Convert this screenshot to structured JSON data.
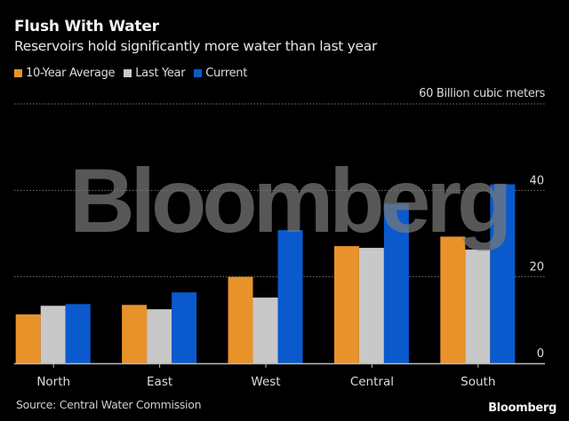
{
  "header": {
    "title": "Flush With Water",
    "subtitle": "Reservoirs hold significantly more water than last year"
  },
  "legend": [
    {
      "label": "10-Year Average",
      "color": "#E8922A"
    },
    {
      "label": "Last Year",
      "color": "#C8C8C8"
    },
    {
      "label": "Current",
      "color": "#0A5ACD"
    }
  ],
  "unit_label": "60 Billion cubic meters",
  "footer": {
    "source": "Source: Central Water Commission",
    "brand": "Bloomberg"
  },
  "watermark": "Bloomberg",
  "chart_data": {
    "type": "bar",
    "title": "Flush With Water",
    "subtitle": "Reservoirs hold significantly more water than last year",
    "xlabel": "",
    "ylabel": "Billion cubic meters",
    "categories": [
      "North",
      "East",
      "West",
      "Central",
      "South"
    ],
    "series": [
      {
        "name": "10-Year Average",
        "color": "#E8922A",
        "values": [
          11.3,
          13.5,
          20.0,
          27.1,
          29.3
        ]
      },
      {
        "name": "Last Year",
        "color": "#C8C8C8",
        "values": [
          13.3,
          12.5,
          15.2,
          26.7,
          26.3
        ]
      },
      {
        "name": "Current",
        "color": "#0A5ACD",
        "values": [
          13.7,
          16.4,
          30.8,
          36.9,
          41.4
        ]
      }
    ],
    "ylim": [
      0,
      60
    ],
    "yticks": [
      0,
      20,
      40,
      60
    ],
    "ytick_labels": [
      "0",
      "20",
      "40",
      "60 Billion cubic meters"
    ],
    "grid": true,
    "legend_position": "top-left",
    "source": "Source: Central Water Commission"
  }
}
